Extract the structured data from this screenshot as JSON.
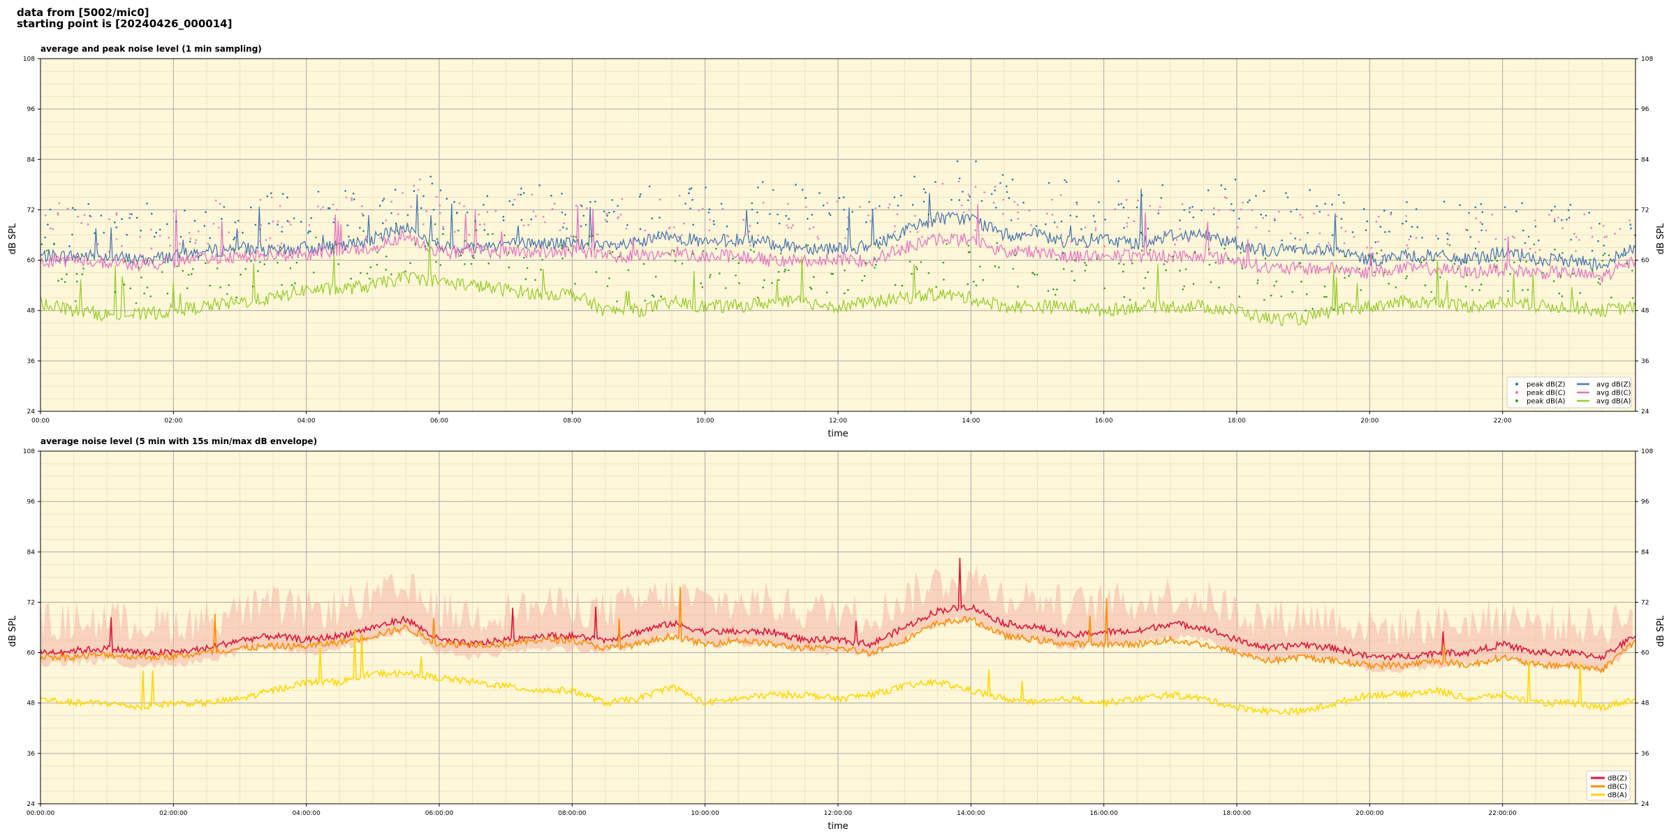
{
  "header": {
    "line1": "data from [5002/mic0]",
    "line2": "starting point is [20240426_000014]"
  },
  "colors": {
    "background": "#fff7d9",
    "peak_z": "#1f77b4",
    "peak_c": "#e377c2",
    "peak_a": "#2ca02c",
    "avg_z": "#4a79b0",
    "avg_c": "#e377c2",
    "avg_a": "#9acd32",
    "env_z": "#dc143c",
    "env_c": "#ff8c00",
    "env_a": "#ffd700",
    "envelope_fill": "#f4b6a6"
  },
  "chart_data": [
    {
      "type": "line",
      "title": "average and peak noise level (1 min sampling)",
      "xlabel": "time",
      "ylabel": "dB SPL",
      "ylim": [
        24,
        108
      ],
      "yticks": [
        "24",
        "36",
        "48",
        "60",
        "72",
        "84",
        "96",
        "108"
      ],
      "xlim_hours": [
        0,
        24
      ],
      "xticks": [
        "00:00",
        "02:00",
        "04:00",
        "06:00",
        "08:00",
        "10:00",
        "12:00",
        "14:00",
        "16:00",
        "18:00",
        "20:00",
        "22:00"
      ],
      "grid": true,
      "legend_position": "bottom-right",
      "x_hours": [
        0,
        0.5,
        1,
        1.5,
        2,
        2.5,
        3,
        3.5,
        4,
        4.5,
        5,
        5.5,
        6,
        6.5,
        7,
        7.5,
        8,
        8.5,
        9,
        9.5,
        10,
        10.5,
        11,
        11.5,
        12,
        12.5,
        13,
        13.5,
        14,
        14.5,
        15,
        15.5,
        16,
        16.5,
        17,
        17.5,
        18,
        18.5,
        19,
        19.5,
        20,
        20.5,
        21,
        21.5,
        22,
        22.5,
        23,
        23.5,
        24
      ],
      "series": [
        {
          "name": "avg dB(Z)",
          "kind": "line",
          "color_key": "avg_z",
          "values": [
            61,
            61,
            61,
            60,
            61,
            62,
            63,
            62,
            63,
            63,
            65,
            68,
            63,
            63,
            64,
            64,
            64,
            63,
            64,
            66,
            64,
            65,
            64,
            63,
            63,
            63,
            67,
            70,
            70,
            66,
            66,
            64,
            65,
            64,
            66,
            66,
            64,
            62,
            63,
            62,
            60,
            61,
            61,
            60,
            62,
            60,
            60,
            59,
            63
          ]
        },
        {
          "name": "avg dB(C)",
          "kind": "line",
          "color_key": "avg_c",
          "values": [
            60,
            60,
            59.5,
            59,
            59.5,
            60.5,
            61,
            61,
            61.5,
            62,
            63,
            66,
            62,
            62,
            62,
            62,
            62,
            61,
            61,
            62,
            61,
            61,
            60,
            60,
            60,
            60,
            63,
            65,
            65,
            62,
            62,
            61,
            61,
            61,
            61,
            61,
            60,
            58,
            58,
            58,
            57,
            58,
            58,
            57,
            58,
            57,
            57,
            56,
            60
          ]
        },
        {
          "name": "avg dB(A)",
          "kind": "line",
          "color_key": "avg_a",
          "values": [
            50,
            48,
            47,
            47,
            48,
            49,
            50,
            51,
            53,
            53,
            54,
            56,
            55,
            54,
            53,
            52,
            52,
            48,
            48,
            50,
            49,
            49,
            50,
            50,
            49,
            50,
            51,
            52,
            51,
            49,
            49,
            49,
            48,
            49,
            49,
            49,
            48,
            46,
            46,
            48,
            49,
            50,
            50,
            49,
            50,
            49,
            49,
            48,
            49
          ]
        },
        {
          "name": "peak dB(Z)",
          "kind": "scatter",
          "color_key": "peak_z"
        },
        {
          "name": "peak dB(C)",
          "kind": "scatter",
          "color_key": "peak_c"
        },
        {
          "name": "peak dB(A)",
          "kind": "scatter",
          "color_key": "peak_a"
        }
      ],
      "legend": [
        "peak dB(Z)",
        "peak dB(C)",
        "peak dB(A)",
        "avg dB(Z)",
        "avg dB(C)",
        "avg dB(A)"
      ]
    },
    {
      "type": "line",
      "title": "average noise level (5 min with 15s min/max dB envelope)",
      "xlabel": "time",
      "ylabel": "dB SPL",
      "ylim": [
        24,
        108
      ],
      "yticks": [
        "24",
        "36",
        "48",
        "60",
        "72",
        "84",
        "96",
        "108"
      ],
      "xlim_hours": [
        0,
        24
      ],
      "xticks": [
        "00:00:00",
        "02:00:00",
        "04:00:00",
        "06:00:00",
        "08:00:00",
        "10:00:00",
        "12:00:00",
        "14:00:00",
        "16:00:00",
        "18:00:00",
        "20:00:00",
        "22:00:00"
      ],
      "grid": true,
      "legend_position": "bottom-right",
      "x_hours": [
        0,
        0.5,
        1,
        1.5,
        2,
        2.5,
        3,
        3.5,
        4,
        4.5,
        5,
        5.5,
        6,
        6.5,
        7,
        7.5,
        8,
        8.5,
        9,
        9.5,
        10,
        10.5,
        11,
        11.5,
        12,
        12.5,
        13,
        13.5,
        14,
        14.5,
        15,
        15.5,
        16,
        16.5,
        17,
        17.5,
        18,
        18.5,
        19,
        19.5,
        20,
        20.5,
        21,
        21.5,
        22,
        22.5,
        23,
        23.5,
        24
      ],
      "series": [
        {
          "name": "dB(Z)",
          "color_key": "env_z",
          "values": [
            60,
            60.5,
            61,
            60,
            60,
            61,
            63,
            64,
            63,
            64,
            66,
            68,
            63,
            62,
            63,
            64,
            64,
            63,
            65,
            67,
            65,
            65,
            65,
            63,
            63,
            62,
            66,
            70,
            71,
            67,
            66,
            64,
            65,
            65,
            67,
            66,
            63,
            61,
            62,
            61,
            59,
            59,
            60,
            60,
            62,
            60,
            60,
            59,
            64
          ]
        },
        {
          "name": "dB(C)",
          "color_key": "env_c",
          "values": [
            59,
            59,
            59.5,
            59,
            59,
            60,
            61,
            61.5,
            61.5,
            62.5,
            64,
            66,
            62,
            62,
            62,
            63,
            63,
            61,
            62,
            64,
            62,
            63,
            62,
            61,
            61,
            60,
            63,
            67,
            68,
            64,
            63,
            62,
            62,
            62,
            63,
            62,
            60,
            58,
            59,
            58,
            57,
            57,
            58,
            57,
            59,
            57,
            57,
            56,
            63
          ]
        },
        {
          "name": "dB(A)",
          "color_key": "env_a",
          "values": [
            49,
            48,
            48,
            47,
            48,
            48,
            49,
            51,
            53,
            53,
            55,
            55,
            54,
            53,
            52,
            51,
            51,
            48,
            49,
            52,
            48,
            49,
            50,
            50,
            49,
            50,
            52,
            53,
            51,
            49,
            48,
            49,
            48,
            49,
            50,
            49,
            47,
            46,
            46,
            48,
            50,
            50,
            51,
            49,
            50,
            48,
            48,
            47,
            49
          ]
        }
      ],
      "legend": [
        "dB(Z)",
        "dB(C)",
        "dB(A)"
      ]
    }
  ]
}
